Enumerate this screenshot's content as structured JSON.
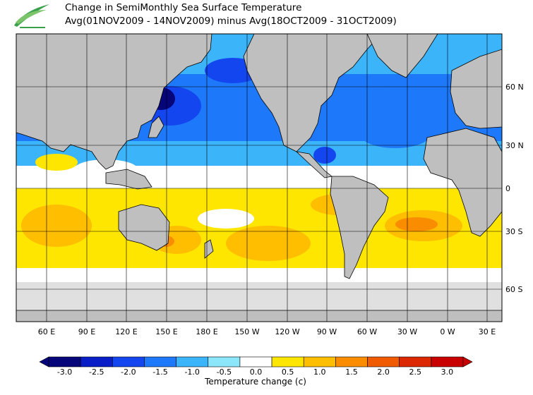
{
  "header": {
    "title_line1": "Change in SemiMonthly Sea Surface Temperature",
    "title_line2": "Avg(01NOV2009 - 14NOV2009) minus Avg(18OCT2009 - 31OCT2009)",
    "logo_icon": "leaf-logo-icon"
  },
  "map": {
    "lat_labels": [
      "60 N",
      "30 N",
      "0",
      "30 S",
      "60 S"
    ],
    "lon_labels": [
      "60 E",
      "90 E",
      "120 E",
      "150 E",
      "180 E",
      "150 W",
      "120 W",
      "90 W",
      "60 W",
      "30 W",
      "0 W",
      "30 E"
    ],
    "land_color": "#bfbfbf",
    "ice_color": "#e0e0e0"
  },
  "colorbar": {
    "title": "Temperature change  (c)",
    "tick_labels": [
      "-3.0",
      "-2.5",
      "-2.0",
      "-1.5",
      "-1.0",
      "-0.5",
      "0.0",
      "0.5",
      "1.0",
      "1.5",
      "2.0",
      "2.5",
      "3.0"
    ],
    "colors": [
      "#06067a",
      "#0a1ec8",
      "#1446f0",
      "#1e78fa",
      "#3cb4fa",
      "#8ce6fa",
      "#ffffff",
      "#ffe600",
      "#ffbe00",
      "#fa8c00",
      "#f05a00",
      "#dc2800",
      "#c80000"
    ]
  }
}
